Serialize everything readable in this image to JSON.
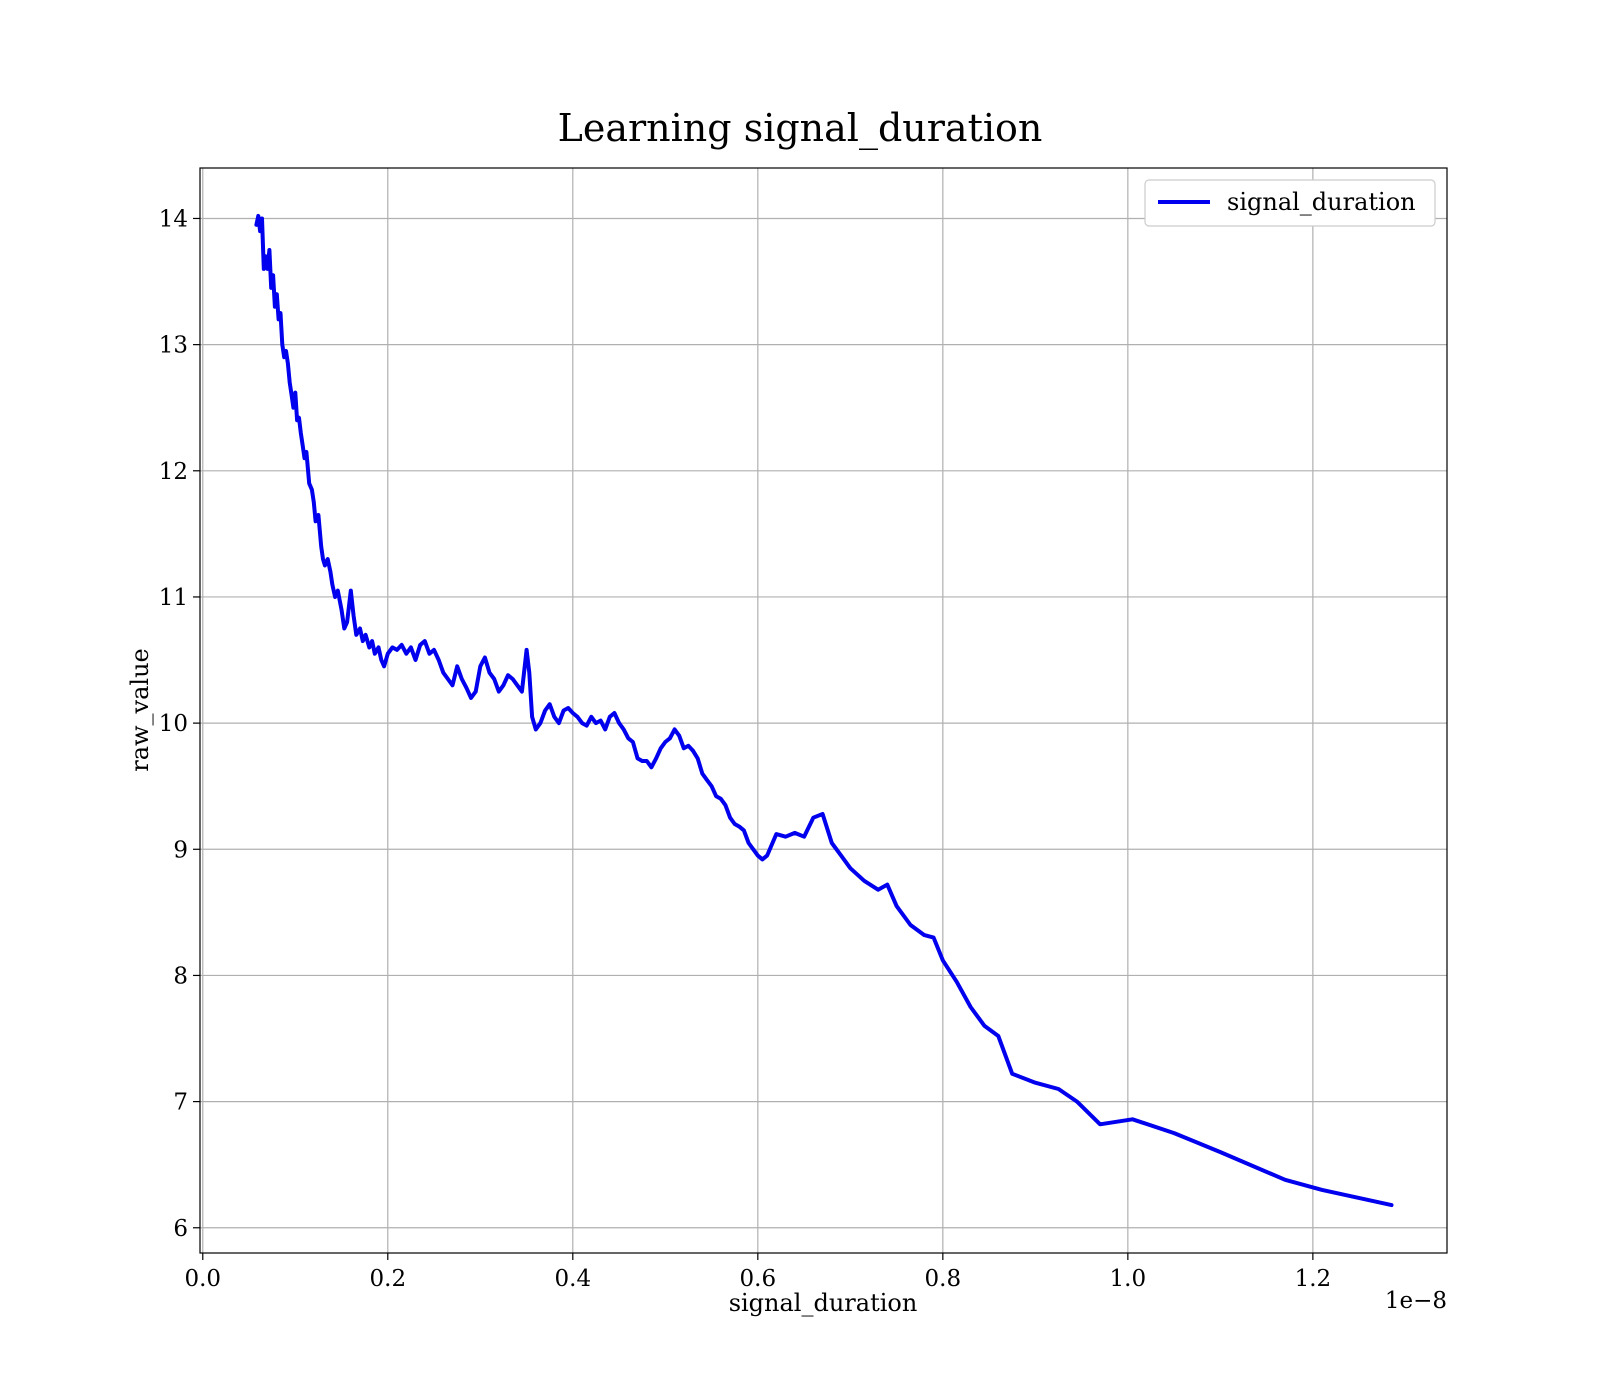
{
  "chart_data": {
    "type": "line",
    "title": "Learning signal_duration",
    "xlabel": "signal_duration",
    "ylabel": "raw_value",
    "x_scale_label": "1e−8",
    "xlim": [
      -0.003,
      1.345
    ],
    "ylim": [
      5.8,
      14.4
    ],
    "x_ticks": [
      0.0,
      0.2,
      0.4,
      0.6,
      0.8,
      1.0,
      1.2
    ],
    "x_tick_labels": [
      "0.0",
      "0.2",
      "0.4",
      "0.6",
      "0.8",
      "1.0",
      "1.2"
    ],
    "y_ticks": [
      6,
      7,
      8,
      9,
      10,
      11,
      12,
      13,
      14
    ],
    "y_tick_labels": [
      "6",
      "7",
      "8",
      "9",
      "10",
      "11",
      "12",
      "13",
      "14"
    ],
    "grid": true,
    "legend_position": "top-right",
    "series": [
      {
        "name": "signal_duration",
        "color": "#0000ee",
        "x": [
          0.058,
          0.06,
          0.062,
          0.064,
          0.066,
          0.068,
          0.07,
          0.072,
          0.074,
          0.076,
          0.078,
          0.08,
          0.082,
          0.084,
          0.086,
          0.088,
          0.09,
          0.092,
          0.094,
          0.096,
          0.098,
          0.1,
          0.102,
          0.104,
          0.106,
          0.108,
          0.11,
          0.112,
          0.115,
          0.118,
          0.12,
          0.122,
          0.125,
          0.128,
          0.13,
          0.132,
          0.135,
          0.138,
          0.14,
          0.143,
          0.146,
          0.15,
          0.153,
          0.156,
          0.16,
          0.163,
          0.166,
          0.17,
          0.173,
          0.176,
          0.18,
          0.183,
          0.186,
          0.19,
          0.193,
          0.196,
          0.2,
          0.205,
          0.21,
          0.215,
          0.22,
          0.225,
          0.23,
          0.235,
          0.24,
          0.245,
          0.25,
          0.255,
          0.26,
          0.265,
          0.27,
          0.275,
          0.28,
          0.285,
          0.29,
          0.295,
          0.3,
          0.305,
          0.31,
          0.315,
          0.32,
          0.325,
          0.33,
          0.335,
          0.34,
          0.345,
          0.35,
          0.353,
          0.356,
          0.36,
          0.365,
          0.37,
          0.375,
          0.38,
          0.385,
          0.39,
          0.395,
          0.4,
          0.405,
          0.41,
          0.415,
          0.42,
          0.425,
          0.43,
          0.435,
          0.44,
          0.445,
          0.45,
          0.455,
          0.46,
          0.465,
          0.47,
          0.475,
          0.48,
          0.485,
          0.49,
          0.495,
          0.5,
          0.505,
          0.51,
          0.515,
          0.52,
          0.525,
          0.53,
          0.535,
          0.54,
          0.545,
          0.55,
          0.555,
          0.56,
          0.565,
          0.57,
          0.575,
          0.58,
          0.585,
          0.59,
          0.6,
          0.605,
          0.61,
          0.62,
          0.63,
          0.64,
          0.65,
          0.66,
          0.67,
          0.68,
          0.69,
          0.7,
          0.715,
          0.73,
          0.74,
          0.75,
          0.765,
          0.78,
          0.79,
          0.8,
          0.815,
          0.83,
          0.845,
          0.86,
          0.875,
          0.9,
          0.925,
          0.945,
          0.97,
          1.005,
          1.05,
          1.1,
          1.17,
          1.21,
          1.285
        ],
        "y": [
          13.95,
          14.02,
          13.9,
          14.0,
          13.6,
          13.7,
          13.6,
          13.75,
          13.45,
          13.55,
          13.3,
          13.4,
          13.2,
          13.25,
          13.0,
          12.9,
          12.95,
          12.85,
          12.7,
          12.6,
          12.5,
          12.62,
          12.4,
          12.42,
          12.3,
          12.2,
          12.1,
          12.15,
          11.9,
          11.85,
          11.75,
          11.6,
          11.65,
          11.4,
          11.3,
          11.25,
          11.3,
          11.2,
          11.1,
          11.0,
          11.05,
          10.9,
          10.75,
          10.8,
          11.05,
          10.85,
          10.7,
          10.75,
          10.65,
          10.7,
          10.6,
          10.65,
          10.55,
          10.6,
          10.5,
          10.45,
          10.55,
          10.6,
          10.58,
          10.62,
          10.55,
          10.6,
          10.5,
          10.62,
          10.65,
          10.55,
          10.58,
          10.5,
          10.4,
          10.35,
          10.3,
          10.45,
          10.35,
          10.28,
          10.2,
          10.25,
          10.45,
          10.52,
          10.4,
          10.35,
          10.25,
          10.3,
          10.38,
          10.35,
          10.3,
          10.25,
          10.58,
          10.4,
          10.05,
          9.95,
          10.0,
          10.1,
          10.15,
          10.05,
          10.0,
          10.1,
          10.12,
          10.08,
          10.05,
          10.0,
          9.98,
          10.05,
          10.0,
          10.02,
          9.95,
          10.05,
          10.08,
          10.0,
          9.95,
          9.88,
          9.85,
          9.72,
          9.7,
          9.7,
          9.65,
          9.72,
          9.8,
          9.85,
          9.88,
          9.95,
          9.9,
          9.8,
          9.82,
          9.78,
          9.72,
          9.6,
          9.55,
          9.5,
          9.42,
          9.4,
          9.35,
          9.25,
          9.2,
          9.18,
          9.15,
          9.05,
          8.95,
          8.92,
          8.95,
          9.12,
          9.1,
          9.13,
          9.1,
          9.25,
          9.28,
          9.05,
          8.95,
          8.85,
          8.75,
          8.68,
          8.72,
          8.55,
          8.4,
          8.32,
          8.3,
          8.12,
          7.95,
          7.75,
          7.6,
          7.52,
          7.22,
          7.15,
          7.1,
          7.0,
          6.82,
          6.86,
          6.75,
          6.6,
          6.38,
          6.3,
          6.18
        ]
      }
    ]
  }
}
